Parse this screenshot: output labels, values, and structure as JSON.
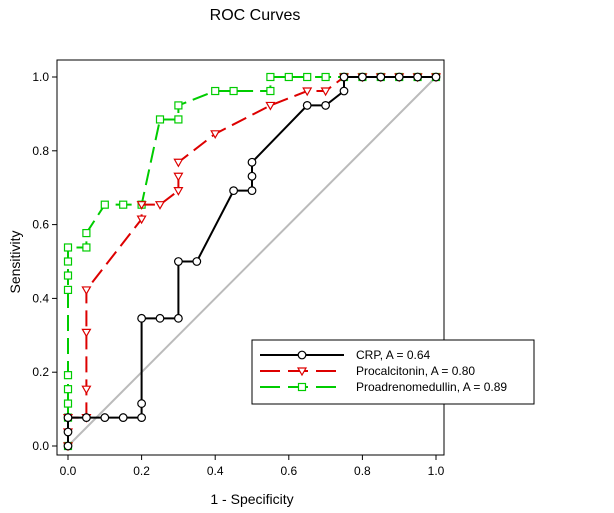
{
  "chart_data": {
    "type": "line",
    "title": "ROC Curves",
    "xlabel": "1 - Specificity",
    "ylabel": "Sensitivity",
    "xlim": [
      0,
      1
    ],
    "ylim": [
      0,
      1
    ],
    "xticks": [
      "0.0",
      "0.2",
      "0.4",
      "0.6",
      "0.8",
      "1.0"
    ],
    "yticks": [
      "0.0",
      "0.2",
      "0.4",
      "0.6",
      "0.8",
      "1.0"
    ],
    "reference_line": {
      "from": [
        0,
        0
      ],
      "to": [
        1,
        1
      ],
      "color": "#bbbbbb"
    },
    "legend_position": "bottom-right",
    "series": [
      {
        "name": "CRP, A = 0.64",
        "color": "#000000",
        "dash": "solid",
        "marker": "circle",
        "points": [
          [
            0,
            0
          ],
          [
            0,
            0.038
          ],
          [
            0,
            0.077
          ],
          [
            0.05,
            0.077
          ],
          [
            0.1,
            0.077
          ],
          [
            0.15,
            0.077
          ],
          [
            0.2,
            0.077
          ],
          [
            0.2,
            0.115
          ],
          [
            0.2,
            0.346
          ],
          [
            0.25,
            0.346
          ],
          [
            0.3,
            0.346
          ],
          [
            0.3,
            0.5
          ],
          [
            0.35,
            0.5
          ],
          [
            0.45,
            0.692
          ],
          [
            0.5,
            0.692
          ],
          [
            0.5,
            0.731
          ],
          [
            0.5,
            0.769
          ],
          [
            0.65,
            0.923
          ],
          [
            0.7,
            0.923
          ],
          [
            0.75,
            0.962
          ],
          [
            0.75,
            1.0
          ],
          [
            0.8,
            1.0
          ],
          [
            0.85,
            1.0
          ],
          [
            0.9,
            1.0
          ],
          [
            0.95,
            1.0
          ],
          [
            1.0,
            1.0
          ]
        ]
      },
      {
        "name": "Procalcitonin, A = 0.80",
        "color": "#dd0000",
        "dash": "long-dash",
        "marker": "triangle-down",
        "points": [
          [
            0,
            0
          ],
          [
            0,
            0.038
          ],
          [
            0,
            0.077
          ],
          [
            0.05,
            0.077
          ],
          [
            0.05,
            0.154
          ],
          [
            0.05,
            0.308
          ],
          [
            0.05,
            0.423
          ],
          [
            0.2,
            0.615
          ],
          [
            0.2,
            0.654
          ],
          [
            0.25,
            0.654
          ],
          [
            0.3,
            0.692
          ],
          [
            0.3,
            0.731
          ],
          [
            0.3,
            0.769
          ],
          [
            0.4,
            0.846
          ],
          [
            0.55,
            0.923
          ],
          [
            0.65,
            0.962
          ],
          [
            0.7,
            0.962
          ],
          [
            0.75,
            1.0
          ],
          [
            0.8,
            1.0
          ],
          [
            0.85,
            1.0
          ],
          [
            0.9,
            1.0
          ],
          [
            0.95,
            1.0
          ],
          [
            1.0,
            1.0
          ]
        ]
      },
      {
        "name": "Proadrenomedullin, A = 0.89",
        "color": "#00cc00",
        "dash": "long-dash",
        "marker": "square",
        "points": [
          [
            0,
            0
          ],
          [
            0,
            0.077
          ],
          [
            0,
            0.115
          ],
          [
            0,
            0.154
          ],
          [
            0,
            0.192
          ],
          [
            0,
            0.423
          ],
          [
            0,
            0.462
          ],
          [
            0,
            0.5
          ],
          [
            0,
            0.538
          ],
          [
            0.05,
            0.538
          ],
          [
            0.05,
            0.577
          ],
          [
            0.1,
            0.654
          ],
          [
            0.15,
            0.654
          ],
          [
            0.2,
            0.654
          ],
          [
            0.25,
            0.885
          ],
          [
            0.3,
            0.885
          ],
          [
            0.3,
            0.923
          ],
          [
            0.4,
            0.962
          ],
          [
            0.45,
            0.962
          ],
          [
            0.55,
            0.962
          ],
          [
            0.55,
            1.0
          ],
          [
            0.6,
            1.0
          ],
          [
            0.65,
            1.0
          ],
          [
            0.7,
            1.0
          ],
          [
            0.75,
            1.0
          ],
          [
            0.8,
            1.0
          ],
          [
            0.85,
            1.0
          ],
          [
            0.9,
            1.0
          ],
          [
            0.95,
            1.0
          ],
          [
            1.0,
            1.0
          ]
        ]
      }
    ]
  }
}
